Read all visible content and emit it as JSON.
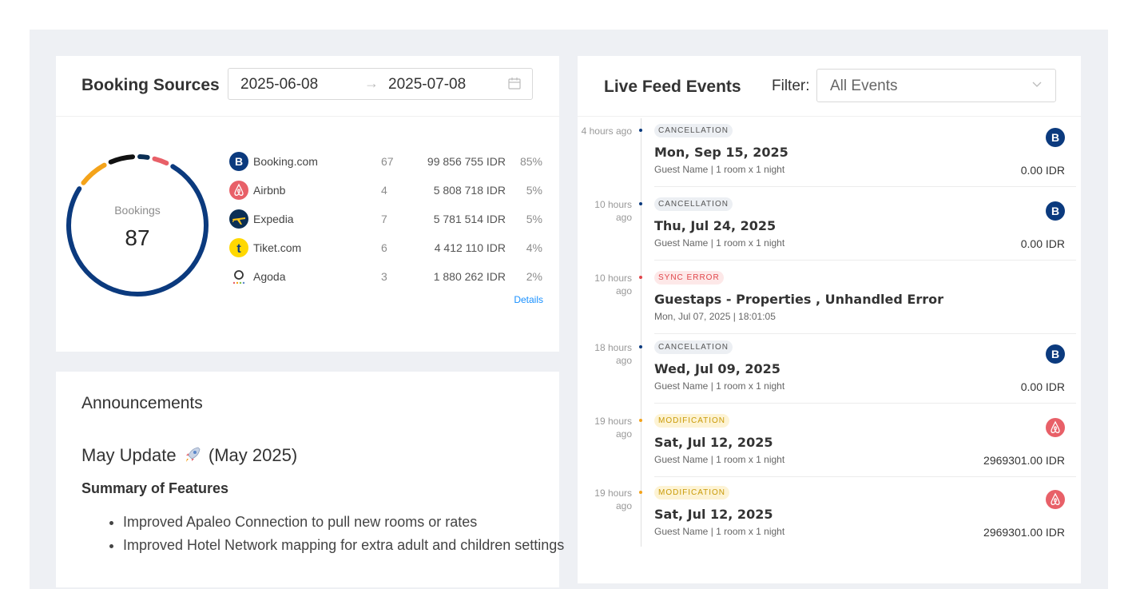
{
  "booking_sources": {
    "title": "Booking Sources",
    "range_start": "2025-06-08",
    "range_arrow": "→",
    "range_end": "2025-07-08",
    "donut_label": "Bookings",
    "donut_total": "87",
    "sources": [
      {
        "name": "Booking.com",
        "count": "67",
        "amount": "99 856 755 IDR",
        "pct": "85%",
        "icon": "booking-com-logo",
        "color": "#0b3a7e"
      },
      {
        "name": "Airbnb",
        "count": "4",
        "amount": "5 808 718 IDR",
        "pct": "5%",
        "icon": "airbnb-logo",
        "color": "#e86068"
      },
      {
        "name": "Expedia",
        "count": "7",
        "amount": "5 781 514 IDR",
        "pct": "5%",
        "icon": "expedia-logo",
        "color": "#f4a31a"
      },
      {
        "name": "Tiket.com",
        "count": "6",
        "amount": "4 412 110 IDR",
        "pct": "4%",
        "icon": "tiket-logo",
        "color": "#111111"
      },
      {
        "name": "Agoda",
        "count": "3",
        "amount": "1 880 262 IDR",
        "pct": "2%",
        "icon": "agoda-logo",
        "color": "#0b2f55"
      }
    ],
    "details_link": "Details"
  },
  "announcements": {
    "title": "Announcements",
    "update_title": "May Update",
    "update_date": "(May 2025)",
    "summary_heading": "Summary of Features",
    "items": [
      "Improved Apaleo Connection to pull new rooms or rates",
      "Improved Hotel Network mapping for extra adult and children settings"
    ]
  },
  "live_feed": {
    "title": "Live Feed Events",
    "filter_label": "Filter:",
    "filter_value": "All Events",
    "events": [
      {
        "ago": "4 hours ago",
        "tag": "CANCELLATION",
        "title": "Mon, Sep 15, 2025",
        "desc": "Guest Name | 1 room x 1 night",
        "amount": "0.00 IDR",
        "platform": "booking-com-logo",
        "platform_letter": "B"
      },
      {
        "ago": "10 hours ago",
        "tag": "CANCELLATION",
        "title": "Thu, Jul 24, 2025",
        "desc": "Guest Name | 1 room x 1 night",
        "amount": "0.00 IDR",
        "platform": "booking-com-logo",
        "platform_letter": "B"
      },
      {
        "ago": "10 hours ago",
        "tag": "SYNC ERROR",
        "title": "Guestaps -   Properties , Unhandled Error",
        "desc": "Mon, Jul 07, 2025 | 18:01:05",
        "amount": "",
        "platform": ""
      },
      {
        "ago": "18 hours ago",
        "tag": "CANCELLATION",
        "title": "Wed, Jul 09, 2025",
        "desc": "Guest Name | 1 room x 1 night",
        "amount": "0.00 IDR",
        "platform": "booking-com-logo",
        "platform_letter": "B"
      },
      {
        "ago": "19 hours ago",
        "tag": "MODIFICATION",
        "title": "Sat, Jul 12, 2025",
        "desc": "Guest Name | 1 room x 1 night",
        "amount": "2969301.00 IDR",
        "platform": "airbnb-logo"
      },
      {
        "ago": "19 hours ago",
        "tag": "MODIFICATION",
        "title": "Sat, Jul 12, 2025",
        "desc": "Guest Name | 1 room x 1 night",
        "amount": "2969301.00 IDR",
        "platform": "airbnb-logo"
      }
    ]
  },
  "colors": {
    "canvas": "#eef0f4",
    "link": "#1890ff",
    "cancellation_dot": "#0b3a7e",
    "error_dot": "#e0454a",
    "modification_dot": "#f4a31a"
  }
}
